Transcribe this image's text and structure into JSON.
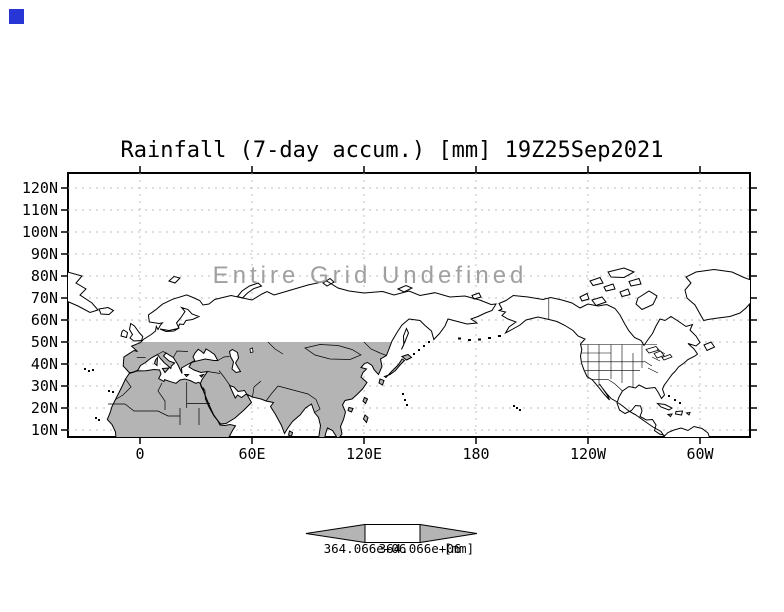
{
  "window": {
    "marker_color": "#2936d6"
  },
  "title": "Rainfall (7-day accum.) [mm] 19Z25Sep2021",
  "map": {
    "undefined_label": "Entire Grid Undefined",
    "lat_ticks": [
      "120N",
      "110N",
      "100N",
      "90N",
      "80N",
      "70N",
      "60N",
      "50N",
      "40N",
      "30N",
      "20N",
      "10N"
    ],
    "lon_ticks": [
      "0",
      "60E",
      "120E",
      "180",
      "120W",
      "60W"
    ]
  },
  "colorbar": {
    "min_label": "364.066e+06",
    "max_label": "364.066e+06",
    "units": "[mm]"
  },
  "colors": {
    "land_shade": "#b4b4b4",
    "arrow_fill": "#b4b4b4",
    "grid": "#bdbdbd",
    "undefined_text": "#a0a0a0",
    "coast": "#000000"
  },
  "chart_data": {
    "type": "map",
    "title": "Rainfall (7-day accum.) [mm] 19Z25Sep2021",
    "projection": "latlon",
    "lat_range": [
      "10N",
      "120N"
    ],
    "lat_tick_labels": [
      "120N",
      "110N",
      "100N",
      "90N",
      "80N",
      "70N",
      "60N",
      "50N",
      "40N",
      "30N",
      "20N",
      "10N"
    ],
    "lon_tick_labels": [
      "0",
      "60E",
      "120E",
      "180",
      "120W",
      "60W"
    ],
    "grid": "dotted",
    "annotation": "Entire Grid Undefined",
    "data_values": null,
    "shaded_region": "land between 10N and 50N, approx 40W-150E",
    "colorbar": {
      "shape": "double-arrow with single box",
      "labels": [
        "364.066e+06",
        "364.066e+06"
      ],
      "units": "[mm]",
      "position": "bottom center"
    }
  }
}
